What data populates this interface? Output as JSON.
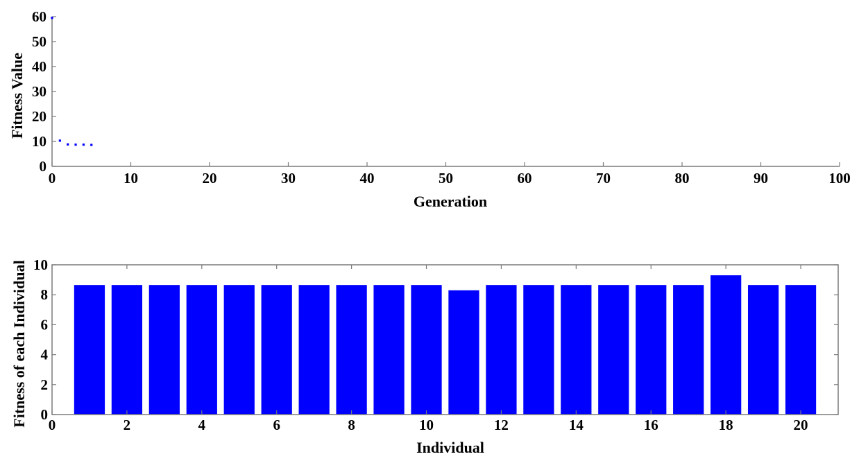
{
  "chart_data": [
    {
      "type": "scatter",
      "title": "",
      "xlabel": "Generation",
      "ylabel": "Fitness Value",
      "xlim": [
        0,
        100
      ],
      "ylim": [
        0,
        60
      ],
      "x_ticks": [
        0,
        10,
        20,
        30,
        40,
        50,
        60,
        70,
        80,
        90,
        100
      ],
      "y_ticks": [
        0,
        10,
        20,
        30,
        40,
        50,
        60
      ],
      "grid": false,
      "series": [
        {
          "color": "#0000ff",
          "marker": "dot",
          "x": [
            0,
            1,
            2,
            3,
            4,
            5
          ],
          "y": [
            59.5,
            10.3,
            8.8,
            8.7,
            8.7,
            8.6
          ]
        }
      ]
    },
    {
      "type": "bar",
      "title": "",
      "xlabel": "Individual",
      "ylabel": "Fitness of each Individual",
      "xlim": [
        0,
        21
      ],
      "ylim": [
        0,
        10
      ],
      "x_ticks": [
        0,
        2,
        4,
        6,
        8,
        10,
        12,
        14,
        16,
        18,
        20
      ],
      "y_ticks": [
        0,
        2,
        4,
        6,
        8,
        10
      ],
      "grid": false,
      "color": "#0000ff",
      "categories": [
        1,
        2,
        3,
        4,
        5,
        6,
        7,
        8,
        9,
        10,
        11,
        12,
        13,
        14,
        15,
        16,
        17,
        18,
        19,
        20
      ],
      "values": [
        8.65,
        8.65,
        8.65,
        8.65,
        8.65,
        8.65,
        8.65,
        8.65,
        8.65,
        8.65,
        8.3,
        8.65,
        8.65,
        8.65,
        8.65,
        8.65,
        8.65,
        9.3,
        8.65,
        8.65
      ]
    }
  ]
}
